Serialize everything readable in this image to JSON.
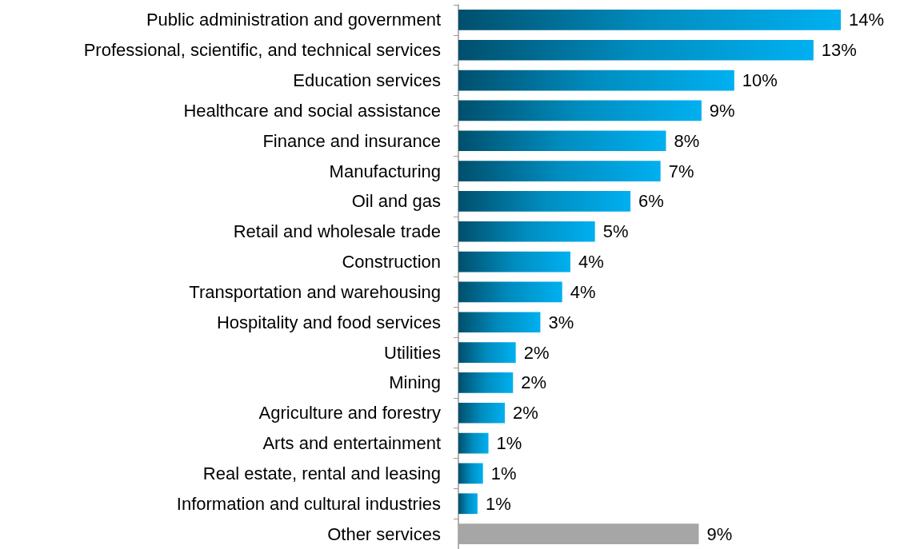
{
  "chart_data": {
    "type": "bar",
    "orientation": "horizontal",
    "categories": [
      "Public administration and government",
      "Professional, scientific, and technical services",
      "Education services",
      "Healthcare and social assistance",
      "Finance and insurance",
      "Manufacturing",
      "Oil and gas",
      "Retail and wholesale trade",
      "Construction",
      "Transportation and warehousing",
      "Hospitality and food services",
      "Utilities",
      "Mining",
      "Agriculture and forestry",
      "Arts and entertainment",
      "Real estate, rental and leasing",
      "Information and cultural industries",
      "Other services"
    ],
    "values": [
      14,
      13,
      10.1,
      8.9,
      7.6,
      7.4,
      6.3,
      5,
      4.1,
      3.8,
      3,
      2.1,
      2,
      1.7,
      1.1,
      0.9,
      0.7,
      8.8
    ],
    "value_labels": [
      "14%",
      "13%",
      "10%",
      "9%",
      "8%",
      "7%",
      "6%",
      "5%",
      "4%",
      "4%",
      "3%",
      "2%",
      "2%",
      "2%",
      "1%",
      "1%",
      "1%",
      "9%"
    ],
    "colors": [
      "#00b0f0",
      "#00b0f0",
      "#00b0f0",
      "#00b0f0",
      "#00b0f0",
      "#00b0f0",
      "#00b0f0",
      "#00b0f0",
      "#00b0f0",
      "#00b0f0",
      "#00b0f0",
      "#00b0f0",
      "#00b0f0",
      "#00b0f0",
      "#00b0f0",
      "#00b0f0",
      "#00b0f0",
      "#a6a6a6"
    ]
  }
}
